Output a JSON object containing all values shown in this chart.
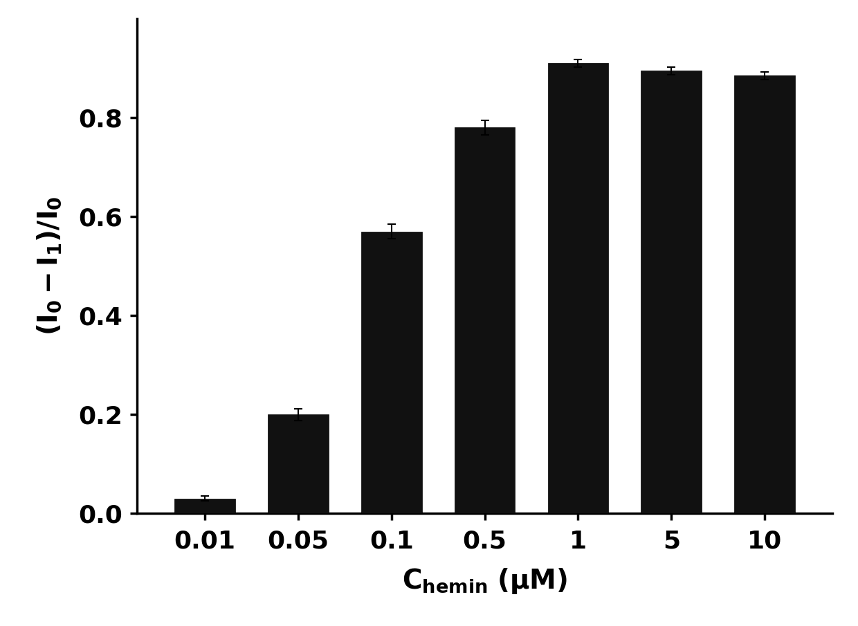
{
  "categories": [
    "0.01",
    "0.05",
    "0.1",
    "0.5",
    "1",
    "5",
    "10"
  ],
  "values": [
    0.03,
    0.2,
    0.57,
    0.78,
    0.91,
    0.895,
    0.885
  ],
  "errors": [
    0.005,
    0.012,
    0.015,
    0.015,
    0.008,
    0.008,
    0.008
  ],
  "bar_color": "#111111",
  "edge_color": "#000000",
  "background_color": "#ffffff",
  "ylim": [
    0.0,
    1.0
  ],
  "yticks": [
    0.0,
    0.2,
    0.4,
    0.6,
    0.8
  ],
  "bar_width": 0.65,
  "label_fontsize": 28,
  "tick_fontsize": 26,
  "spine_linewidth": 2.5,
  "error_capsize": 4,
  "error_linewidth": 1.5
}
